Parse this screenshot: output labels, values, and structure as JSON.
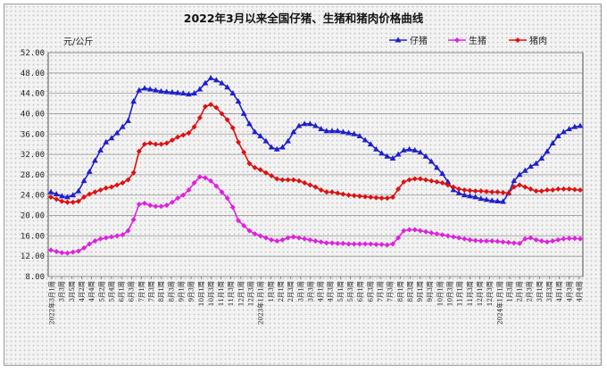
{
  "chart_data": {
    "type": "line",
    "title": "2022年3月以来全国仔猪、生猪和猪肉价格曲线",
    "ylabel": "元/公斤",
    "ylim": [
      8,
      52
    ],
    "yticks": [
      "52.00",
      "48.00",
      "44.00",
      "40.00",
      "36.00",
      "32.00",
      "28.00",
      "24.00",
      "20.00",
      "16.00",
      "12.00",
      "8.00"
    ],
    "grid": true,
    "legend_position": "top-right",
    "x_labels": [
      "2022年3月1周",
      "3月3周",
      "3月5周",
      "4月2周",
      "4月4周",
      "5月2周",
      "5月4周",
      "6月1周",
      "6月3周",
      "7月1周",
      "7月3周",
      "8月1周",
      "8月3周",
      "9月1周",
      "9月3周",
      "10月1周",
      "10月3周",
      "11月1周",
      "11月3周",
      "12月1周",
      "12月3周",
      "2023年1月1周",
      "1月3周",
      "2月1周",
      "2月3周",
      "3月1周",
      "3月3周",
      "4月1周",
      "4月3周",
      "5月1周",
      "5月3周",
      "6月1周",
      "6月3周",
      "7月1周",
      "7月3周",
      "8月1周",
      "8月3周",
      "9月1周",
      "9月3周",
      "10月1周",
      "10月3周",
      "11月1周",
      "11月3周",
      "12月1周",
      "12月3周",
      "2024年1月1周",
      "1月3周",
      "2月1周",
      "2月3周",
      "3月1周",
      "3月3周",
      "4月1周",
      "4月3周",
      "4月4周"
    ],
    "series": [
      {
        "name": "仔猪",
        "color": "#1f1fd0",
        "marker": "triangle",
        "values": [
          24.6,
          24.2,
          23.8,
          23.6,
          24.0,
          24.8,
          26.8,
          28.6,
          30.8,
          32.8,
          34.4,
          35.2,
          36.2,
          37.4,
          38.6,
          42.4,
          44.6,
          45.0,
          44.8,
          44.6,
          44.4,
          44.3,
          44.2,
          44.1,
          44.0,
          43.8,
          44.0,
          44.8,
          46.0,
          47.0,
          46.6,
          46.0,
          45.2,
          44.0,
          42.4,
          40.0,
          38.0,
          36.4,
          35.6,
          34.6,
          33.4,
          33.0,
          33.4,
          34.6,
          36.4,
          37.6,
          38.0,
          38.0,
          37.6,
          37.0,
          36.6,
          36.6,
          36.6,
          36.4,
          36.2,
          36.0,
          35.6,
          34.8,
          34.0,
          33.0,
          32.2,
          31.6,
          31.2,
          32.0,
          32.8,
          33.0,
          32.8,
          32.4,
          31.6,
          30.6,
          29.4,
          28.2,
          26.6,
          25.0,
          24.4,
          24.0,
          23.8,
          23.6,
          23.3,
          23.1,
          22.9,
          22.8,
          22.7,
          24.4,
          26.8,
          28.0,
          28.8,
          29.6,
          30.2,
          31.2,
          32.6,
          34.2,
          35.6,
          36.4,
          37.0,
          37.4,
          37.6
        ]
      },
      {
        "name": "生猪",
        "color": "#e020e0",
        "marker": "diamond",
        "values": [
          13.2,
          12.9,
          12.7,
          12.6,
          12.8,
          13.0,
          13.6,
          14.4,
          15.0,
          15.4,
          15.6,
          15.8,
          16.0,
          16.2,
          17.0,
          19.2,
          22.2,
          22.4,
          22.0,
          21.8,
          21.8,
          22.0,
          22.6,
          23.4,
          24.0,
          25.0,
          26.4,
          27.6,
          27.4,
          26.8,
          25.8,
          24.6,
          23.4,
          21.6,
          19.0,
          18.0,
          17.0,
          16.4,
          16.0,
          15.6,
          15.2,
          15.0,
          15.2,
          15.6,
          15.8,
          15.6,
          15.4,
          15.2,
          15.0,
          14.8,
          14.6,
          14.6,
          14.5,
          14.5,
          14.4,
          14.4,
          14.4,
          14.4,
          14.4,
          14.3,
          14.3,
          14.2,
          14.4,
          15.6,
          17.0,
          17.2,
          17.2,
          17.0,
          16.8,
          16.6,
          16.4,
          16.2,
          16.0,
          15.8,
          15.6,
          15.4,
          15.2,
          15.1,
          15.0,
          15.0,
          15.0,
          14.9,
          14.8,
          14.7,
          14.6,
          14.5,
          15.4,
          15.6,
          15.2,
          15.0,
          14.8,
          15.0,
          15.2,
          15.4,
          15.5,
          15.5,
          15.4
        ]
      },
      {
        "name": "猪肉",
        "color": "#e01010",
        "marker": "diamond",
        "values": [
          23.6,
          23.2,
          22.8,
          22.6,
          22.6,
          22.8,
          23.6,
          24.2,
          24.6,
          25.0,
          25.4,
          25.6,
          26.0,
          26.4,
          27.0,
          28.4,
          32.6,
          34.0,
          34.2,
          34.0,
          34.0,
          34.2,
          34.8,
          35.4,
          35.8,
          36.2,
          37.4,
          39.2,
          41.4,
          41.8,
          41.2,
          40.0,
          38.8,
          37.2,
          34.4,
          32.4,
          30.2,
          29.4,
          29.0,
          28.4,
          27.8,
          27.2,
          27.0,
          27.0,
          27.0,
          26.8,
          26.4,
          26.0,
          25.6,
          25.0,
          24.6,
          24.6,
          24.4,
          24.2,
          24.0,
          23.9,
          23.8,
          23.7,
          23.6,
          23.5,
          23.4,
          23.4,
          23.6,
          25.2,
          26.6,
          27.0,
          27.2,
          27.2,
          27.0,
          26.8,
          26.6,
          26.4,
          26.0,
          25.6,
          25.2,
          25.0,
          24.9,
          24.8,
          24.8,
          24.7,
          24.6,
          24.6,
          24.5,
          24.4,
          25.6,
          26.0,
          25.6,
          25.2,
          24.8,
          24.8,
          25.0,
          25.0,
          25.2,
          25.2,
          25.2,
          25.1,
          25.0
        ]
      }
    ]
  }
}
